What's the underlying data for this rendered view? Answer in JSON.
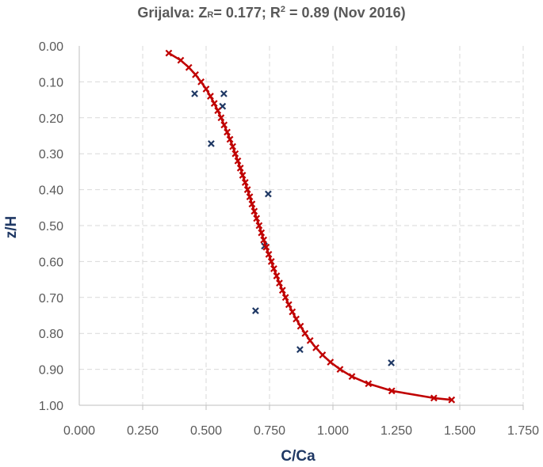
{
  "chart_data": {
    "type": "scatter",
    "title": {
      "part1": "Grijalva: Z",
      "subscript": "R",
      "part2": "= 0.177; R",
      "superscript": "2",
      "part3": " = 0.89 (Nov 2016)"
    },
    "xlabel": "C/Ca",
    "ylabel": "z/H",
    "xlim": [
      0,
      1.75
    ],
    "ylim": [
      0,
      1
    ],
    "y_axis_reversed": true,
    "x_ticks": [
      "0.000",
      "0.250",
      "0.500",
      "0.750",
      "1.000",
      "1.250",
      "1.500",
      "1.750"
    ],
    "y_ticks": [
      "0.00",
      "0.10",
      "0.20",
      "0.30",
      "0.40",
      "0.50",
      "0.60",
      "0.70",
      "0.80",
      "0.90",
      "1.00"
    ],
    "grid": true,
    "legend": "none",
    "series": [
      {
        "style": "markers",
        "color": "#1f3864",
        "points": [
          [
            0.455,
            0.133
          ],
          [
            0.57,
            0.133
          ],
          [
            0.565,
            0.168
          ],
          [
            0.52,
            0.272
          ],
          [
            0.745,
            0.412
          ],
          [
            0.73,
            0.557
          ],
          [
            0.695,
            0.737
          ],
          [
            0.87,
            0.845
          ],
          [
            1.23,
            0.882
          ]
        ]
      },
      {
        "style": "line+markers",
        "color": "#c00000",
        "points": [
          [
            0.353,
            0.02
          ],
          [
            0.4,
            0.04
          ],
          [
            0.432,
            0.06
          ],
          [
            0.458,
            0.08
          ],
          [
            0.48,
            0.1
          ],
          [
            0.5,
            0.12
          ],
          [
            0.517,
            0.14
          ],
          [
            0.532,
            0.16
          ],
          [
            0.546,
            0.18
          ],
          [
            0.559,
            0.2
          ],
          [
            0.571,
            0.22
          ],
          [
            0.583,
            0.24
          ],
          [
            0.594,
            0.26
          ],
          [
            0.605,
            0.28
          ],
          [
            0.615,
            0.3
          ],
          [
            0.625,
            0.32
          ],
          [
            0.635,
            0.34
          ],
          [
            0.644,
            0.36
          ],
          [
            0.654,
            0.38
          ],
          [
            0.663,
            0.4
          ],
          [
            0.672,
            0.42
          ],
          [
            0.681,
            0.44
          ],
          [
            0.69,
            0.46
          ],
          [
            0.699,
            0.48
          ],
          [
            0.709,
            0.5
          ],
          [
            0.718,
            0.52
          ],
          [
            0.727,
            0.54
          ],
          [
            0.737,
            0.56
          ],
          [
            0.747,
            0.58
          ],
          [
            0.757,
            0.6
          ],
          [
            0.767,
            0.62
          ],
          [
            0.778,
            0.64
          ],
          [
            0.789,
            0.66
          ],
          [
            0.801,
            0.68
          ],
          [
            0.813,
            0.7
          ],
          [
            0.826,
            0.72
          ],
          [
            0.84,
            0.74
          ],
          [
            0.855,
            0.76
          ],
          [
            0.872,
            0.78
          ],
          [
            0.89,
            0.8
          ],
          [
            0.91,
            0.82
          ],
          [
            0.933,
            0.84
          ],
          [
            0.959,
            0.86
          ],
          [
            0.99,
            0.88
          ],
          [
            1.028,
            0.9
          ],
          [
            1.075,
            0.92
          ],
          [
            1.14,
            0.94
          ],
          [
            1.232,
            0.96
          ],
          [
            1.398,
            0.98
          ],
          [
            1.468,
            0.985
          ]
        ]
      }
    ]
  }
}
